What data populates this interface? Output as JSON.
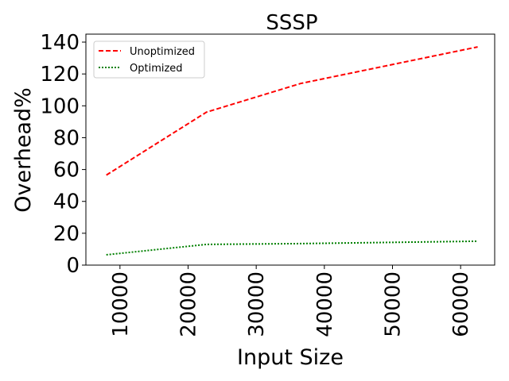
{
  "chart_data": {
    "type": "line",
    "title": "SSSP",
    "xlabel": "Input Size",
    "ylabel": "Overhead%",
    "xlim": [
      5000,
      65000
    ],
    "ylim": [
      0,
      145
    ],
    "xticks": [
      10000,
      20000,
      30000,
      40000,
      50000,
      60000
    ],
    "yticks": [
      0,
      20,
      40,
      60,
      80,
      100,
      120,
      140
    ],
    "grid": false,
    "legend_position": "top-left",
    "series": [
      {
        "name": "Unoptimized",
        "color": "#ff0000",
        "style": "dashed",
        "x": [
          8000,
          22700,
          36500,
          62500
        ],
        "y": [
          56.5,
          96,
          114,
          137
        ]
      },
      {
        "name": "Optimized",
        "color": "#008000",
        "style": "dotted",
        "x": [
          8000,
          22700,
          36500,
          62500
        ],
        "y": [
          6.5,
          13,
          13.5,
          15
        ]
      }
    ]
  }
}
